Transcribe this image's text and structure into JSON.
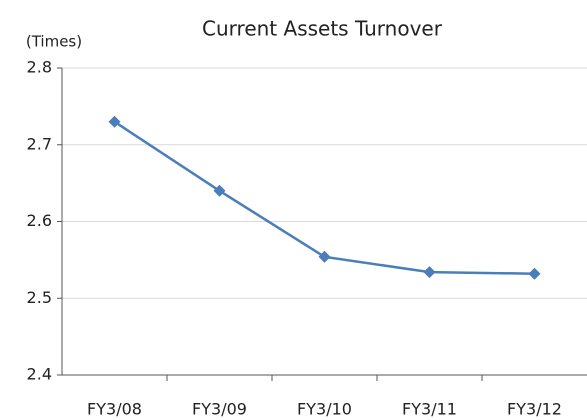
{
  "chart_data": {
    "type": "line",
    "title": "Current Assets Turnover",
    "y_label": "(Times)",
    "categories": [
      "FY3/08",
      "FY3/09",
      "FY3/10",
      "FY3/11",
      "FY3/12"
    ],
    "values": [
      2.73,
      2.64,
      2.554,
      2.534,
      2.532
    ],
    "color": "#4a7ebb",
    "ylim": [
      2.4,
      2.8
    ],
    "yticks": [
      2.4,
      2.5,
      2.6,
      2.7,
      2.8
    ],
    "grid": true
  }
}
